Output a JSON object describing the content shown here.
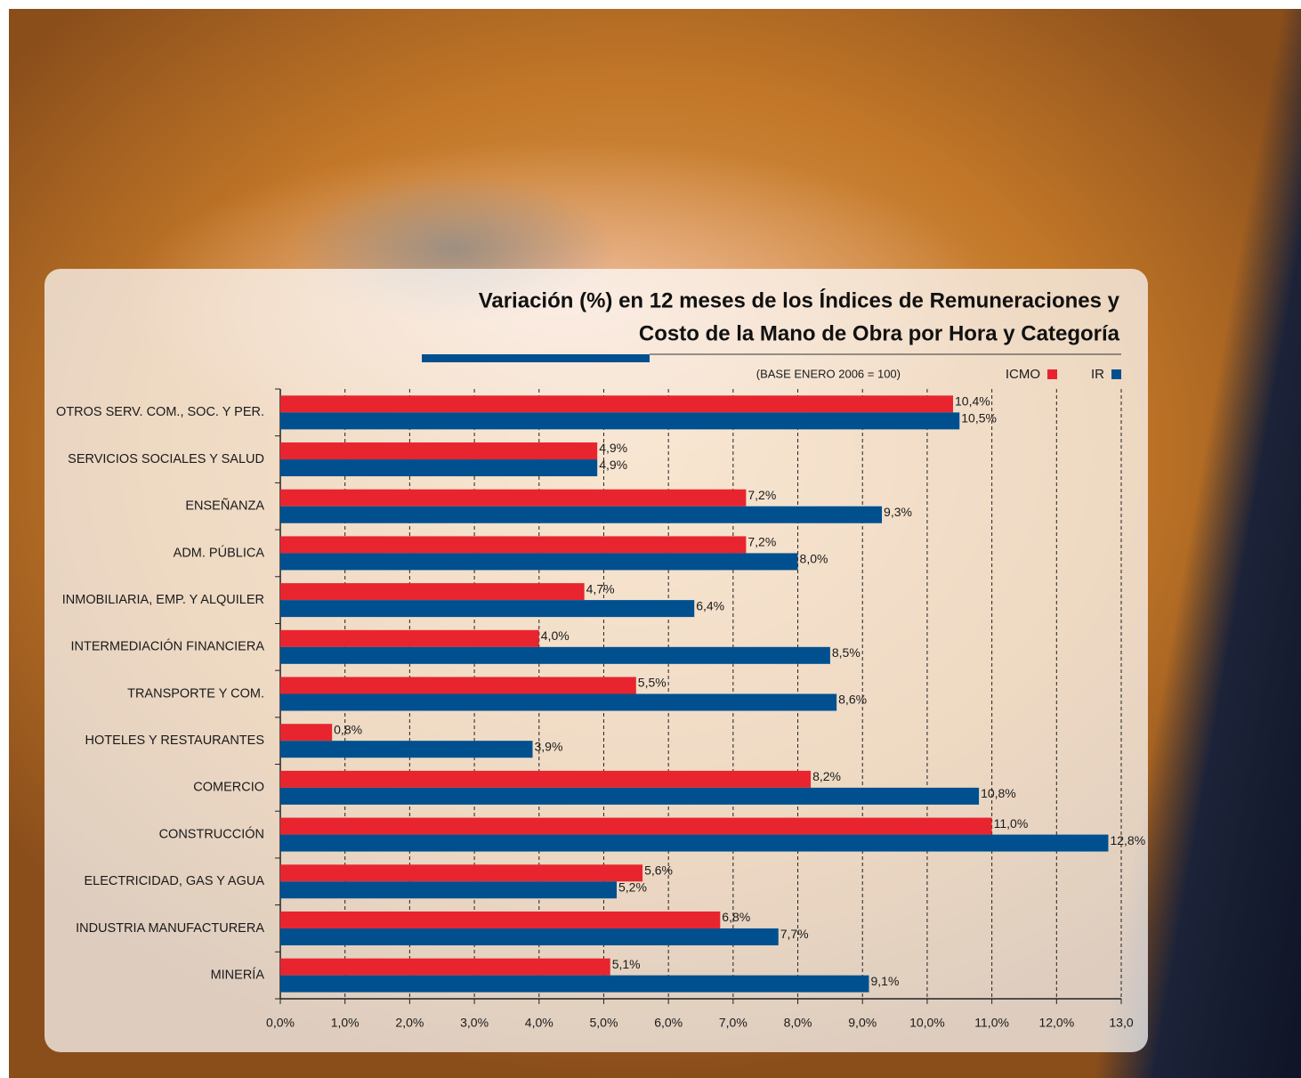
{
  "chart_data": {
    "type": "bar",
    "orientation": "horizontal",
    "title": [
      "Variación (%) en 12 meses de los Índices de Remuneraciones y",
      "Costo de la Mano de Obra por Hora y Categoría"
    ],
    "subtitle": "(BASE ENERO 2006 = 100)",
    "categories": [
      "OTROS SERV. COM., SOC. Y PER.",
      "SERVICIOS SOCIALES Y SALUD",
      "ENSEÑANZA",
      "ADM. PÚBLICA",
      "INMOBILIARIA, EMP. Y ALQUILER",
      "INTERMEDIACIÓN FINANCIERA",
      "TRANSPORTE Y COM.",
      "HOTELES Y RESTAURANTES",
      "COMERCIO",
      "CONSTRUCCIÓN",
      "ELECTRICIDAD, GAS Y AGUA",
      "INDUSTRIA MANUFACTURERA",
      "MINERÍA"
    ],
    "series": [
      {
        "name": "ICMO",
        "color": "#e8252f",
        "values": [
          10.4,
          4.9,
          7.2,
          7.2,
          4.7,
          4.0,
          5.5,
          0.8,
          8.2,
          11.0,
          5.6,
          6.8,
          5.1
        ],
        "value_labels": [
          "10,4%",
          "4,9%",
          "7,2%",
          "7,2%",
          "4,7%",
          "4,0%",
          "5,5%",
          "0,8%",
          "8,2%",
          "11,0%",
          "5,6%",
          "6,8%",
          "5,1%"
        ]
      },
      {
        "name": "IR",
        "color": "#00508f",
        "values": [
          10.5,
          4.9,
          9.3,
          8.0,
          6.4,
          8.5,
          8.6,
          3.9,
          10.8,
          12.8,
          5.2,
          7.7,
          9.1
        ],
        "value_labels": [
          "10,5%",
          "4,9%",
          "9,3%",
          "8,0%",
          "6,4%",
          "8,5%",
          "8,6%",
          "3,9%",
          "10,8%",
          "12,8%",
          "5,2%",
          "7,7%",
          "9,1%"
        ]
      }
    ],
    "xlim": [
      0,
      13
    ],
    "xticks": [
      {
        "value": 0,
        "label": "0,0%"
      },
      {
        "value": 1,
        "label": "1,0%"
      },
      {
        "value": 2,
        "label": "2,0%"
      },
      {
        "value": 3,
        "label": "3,0%"
      },
      {
        "value": 4,
        "label": "4,0%"
      },
      {
        "value": 5,
        "label": "5,0%"
      },
      {
        "value": 6,
        "label": "6,0%"
      },
      {
        "value": 7,
        "label": "7,0%"
      },
      {
        "value": 8,
        "label": "8,0%"
      },
      {
        "value": 9,
        "label": "9,0%"
      },
      {
        "value": 10,
        "label": "10,0%"
      },
      {
        "value": 11,
        "label": "11,0%"
      },
      {
        "value": 12,
        "label": "12,0%"
      },
      {
        "value": 13,
        "label": "13,0"
      }
    ],
    "grid": true,
    "legend": "top-right"
  }
}
